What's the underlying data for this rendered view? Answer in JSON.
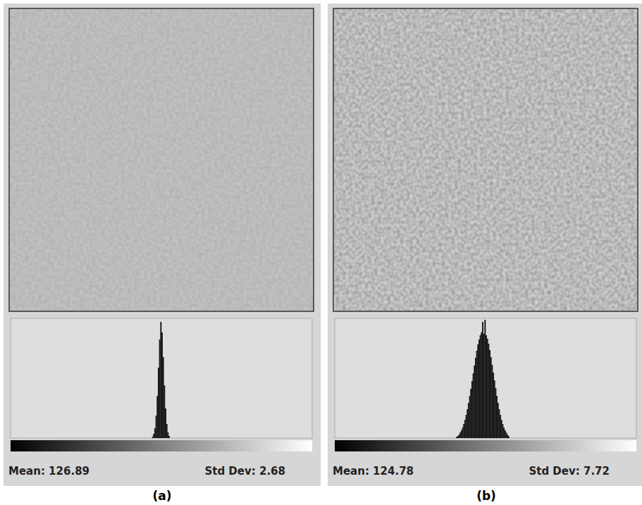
{
  "chart_data": [
    {
      "type": "histogram",
      "title": "(a)",
      "annotations": [
        "Mean: 126.89",
        "Std Dev: 2.68"
      ],
      "bins": [
        120,
        121,
        122,
        123,
        124,
        125,
        126,
        127,
        128,
        129,
        130,
        131,
        132,
        133,
        134,
        135
      ],
      "values": [
        2,
        6,
        14,
        32,
        60,
        100,
        140,
        165,
        150,
        115,
        75,
        42,
        20,
        8,
        3
      ],
      "xlim": [
        0,
        256
      ],
      "ylim": [
        0,
        170
      ],
      "grid": false,
      "tick_labels": false,
      "color": "#1a1a1a"
    },
    {
      "type": "histogram",
      "title": "(b)",
      "annotations": [
        "Mean: 124.78",
        "Std Dev: 7.72"
      ],
      "bins": [
        103,
        104,
        105,
        106,
        107,
        108,
        109,
        110,
        111,
        112,
        113,
        114,
        115,
        116,
        117,
        118,
        119,
        120,
        121,
        122,
        123,
        124,
        125,
        126,
        127,
        128,
        129,
        130,
        131,
        132,
        133,
        134,
        135,
        136,
        137,
        138,
        139,
        140,
        141,
        142,
        143,
        144,
        145,
        146,
        147,
        148
      ],
      "values": [
        2,
        3,
        5,
        8,
        11,
        15,
        20,
        26,
        33,
        41,
        50,
        60,
        70,
        81,
        92,
        103,
        114,
        124,
        133,
        140,
        146,
        150,
        165,
        148,
        168,
        146,
        141,
        134,
        125,
        115,
        104,
        93,
        82,
        71,
        60,
        50,
        41,
        33,
        26,
        20,
        15,
        11,
        8,
        5,
        3
      ],
      "xlim": [
        0,
        256
      ],
      "ylim": [
        0,
        170
      ],
      "grid": false,
      "tick_labels": false,
      "color": "#1a1a1a"
    }
  ]
}
